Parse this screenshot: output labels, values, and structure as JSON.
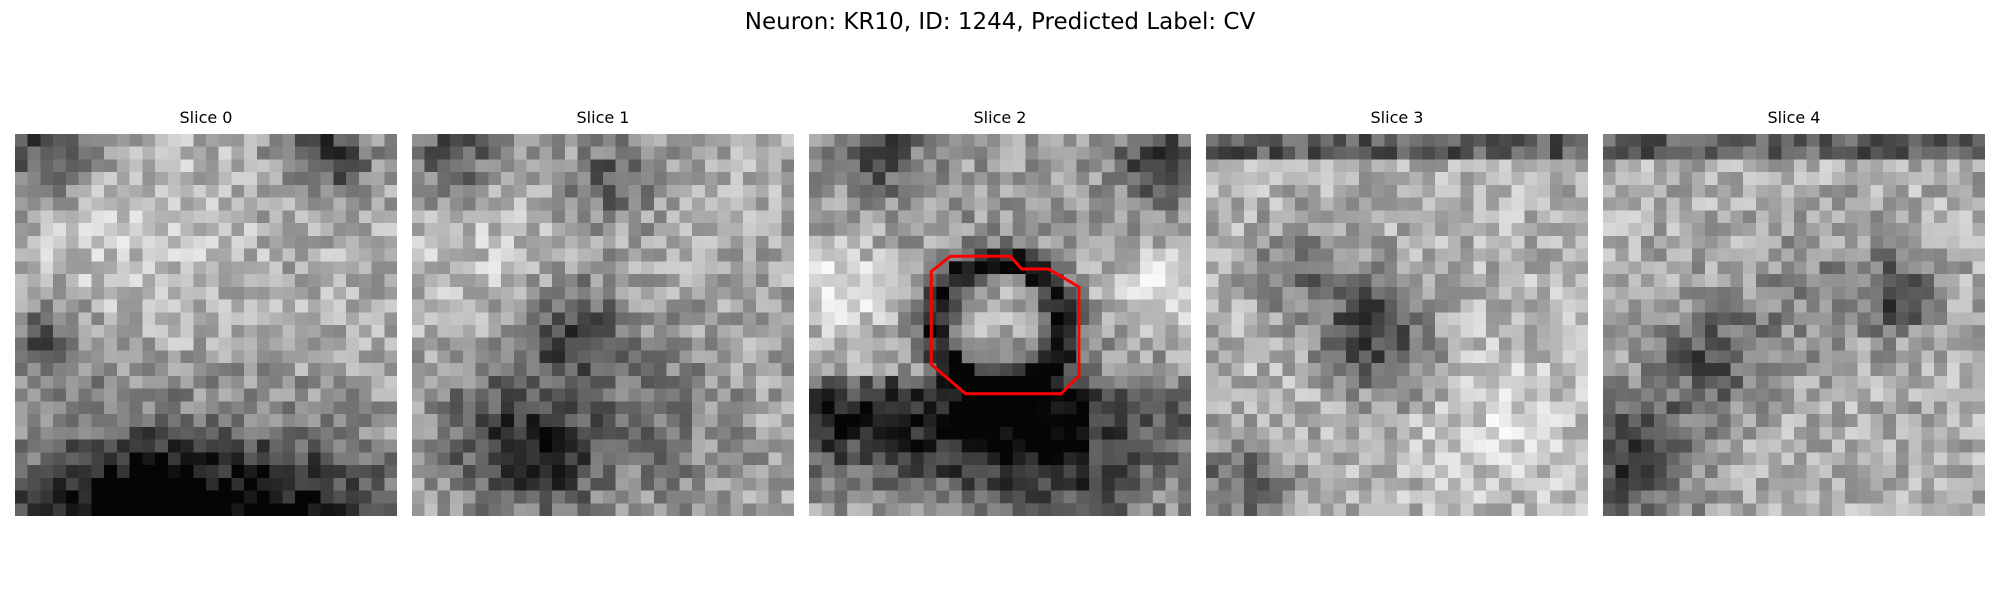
{
  "figure": {
    "title": "Neuron: KR10, ID: 1244, Predicted Label: CV"
  },
  "slices": [
    {
      "label": "Slice 0"
    },
    {
      "label": "Slice 1"
    },
    {
      "label": "Slice 2"
    },
    {
      "label": "Slice 3"
    },
    {
      "label": "Slice 4"
    }
  ],
  "roi": {
    "color": "#ff0000",
    "on_slice": 2
  },
  "colormap": "gray"
}
